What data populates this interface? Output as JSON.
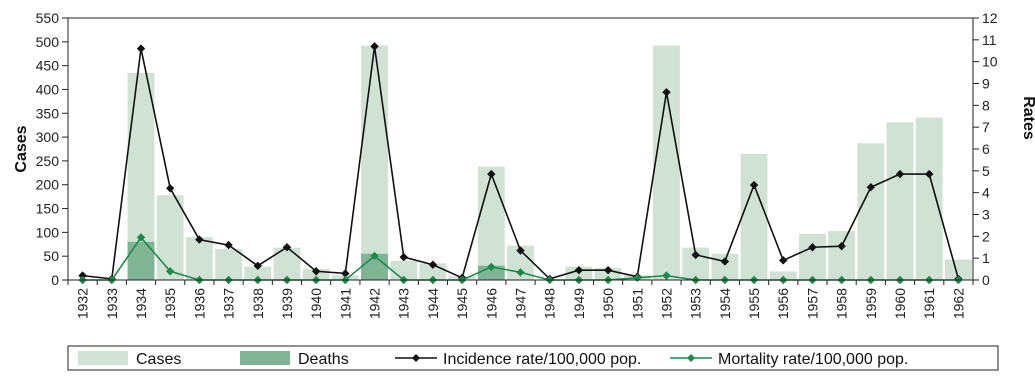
{
  "chart_data": {
    "type": "bar",
    "categories": [
      "1932",
      "1933",
      "1934",
      "1935",
      "1936",
      "1937",
      "1938",
      "1939",
      "1940",
      "1941",
      "1942",
      "1943",
      "1944",
      "1945",
      "1946",
      "1947",
      "1948",
      "1949",
      "1950",
      "1951",
      "1952",
      "1953",
      "1954",
      "1955",
      "1956",
      "1957",
      "1958",
      "1959",
      "1960",
      "1961",
      "1962"
    ],
    "series": [
      {
        "name": "Cases",
        "kind": "bar",
        "axis": "left",
        "color": "#cfe2d4",
        "values": [
          0,
          0,
          435,
          178,
          90,
          65,
          28,
          68,
          23,
          10,
          492,
          40,
          35,
          8,
          238,
          72,
          0,
          28,
          25,
          10,
          492,
          68,
          55,
          265,
          18,
          97,
          103,
          287,
          331,
          341,
          43
        ]
      },
      {
        "name": "Deaths",
        "kind": "bar",
        "axis": "left",
        "color": "#7fb595",
        "values": [
          0,
          0,
          80,
          0,
          0,
          0,
          0,
          0,
          0,
          0,
          55,
          0,
          0,
          0,
          30,
          0,
          0,
          0,
          0,
          0,
          0,
          0,
          0,
          0,
          0,
          0,
          0,
          0,
          0,
          0,
          0
        ]
      },
      {
        "name": "Incidence rate/100,000 pop.",
        "kind": "line",
        "axis": "right",
        "color": "#111111",
        "values": [
          0.2,
          0.05,
          10.6,
          4.2,
          1.85,
          1.6,
          0.65,
          1.5,
          0.4,
          0.3,
          10.7,
          1.05,
          0.7,
          0.1,
          4.85,
          1.35,
          0.05,
          0.45,
          0.45,
          0.15,
          8.6,
          1.15,
          0.85,
          4.35,
          0.9,
          1.5,
          1.55,
          4.25,
          4.85,
          4.85,
          0.05
        ]
      },
      {
        "name": "Mortality rate/100,000 pop.",
        "kind": "line",
        "axis": "right",
        "color": "#1e8a4a",
        "values": [
          0,
          0,
          1.95,
          0.4,
          0,
          0,
          0,
          0,
          0,
          0,
          1.1,
          0,
          0,
          0,
          0.6,
          0.35,
          0,
          0,
          0,
          0.1,
          0.2,
          0,
          0,
          0,
          0,
          0,
          0,
          0,
          0,
          0,
          0
        ]
      }
    ],
    "title": "",
    "ylabel": "Cases",
    "y2label": "Rates",
    "ylim": [
      0,
      550
    ],
    "y2lim": [
      0,
      12
    ],
    "yticks": [
      0,
      50,
      100,
      150,
      200,
      250,
      300,
      350,
      400,
      450,
      500,
      550
    ],
    "y2ticks": [
      0,
      1,
      2,
      3,
      4,
      5,
      6,
      7,
      8,
      9,
      10,
      11,
      12
    ],
    "grid": false,
    "legend_position": "bottom"
  }
}
